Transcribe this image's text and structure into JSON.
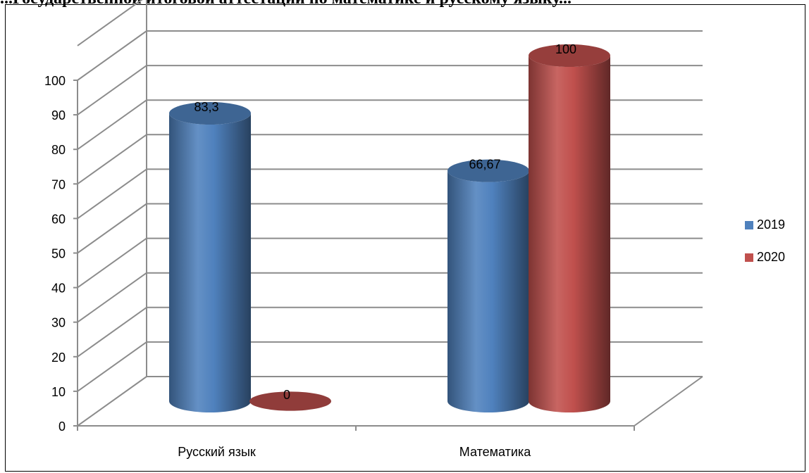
{
  "heading": "...Государственной итоговой аттестации по математике и русскому языку...",
  "chart_data": {
    "type": "bar",
    "style": "3d-cylinder",
    "categories": [
      "Русский язык",
      "Математика"
    ],
    "series": [
      {
        "name": "2019",
        "values": [
          83.3,
          66.67
        ],
        "labels": [
          "83,3",
          "66,67"
        ],
        "color": "#4f81bd"
      },
      {
        "name": "2020",
        "values": [
          0,
          100
        ],
        "labels": [
          "0",
          "100"
        ],
        "color": "#c0504d"
      }
    ],
    "ylim": [
      0,
      100
    ],
    "yticks": [
      0,
      10,
      20,
      30,
      40,
      50,
      60,
      70,
      80,
      90,
      100
    ],
    "grid": true,
    "legend": "right"
  }
}
